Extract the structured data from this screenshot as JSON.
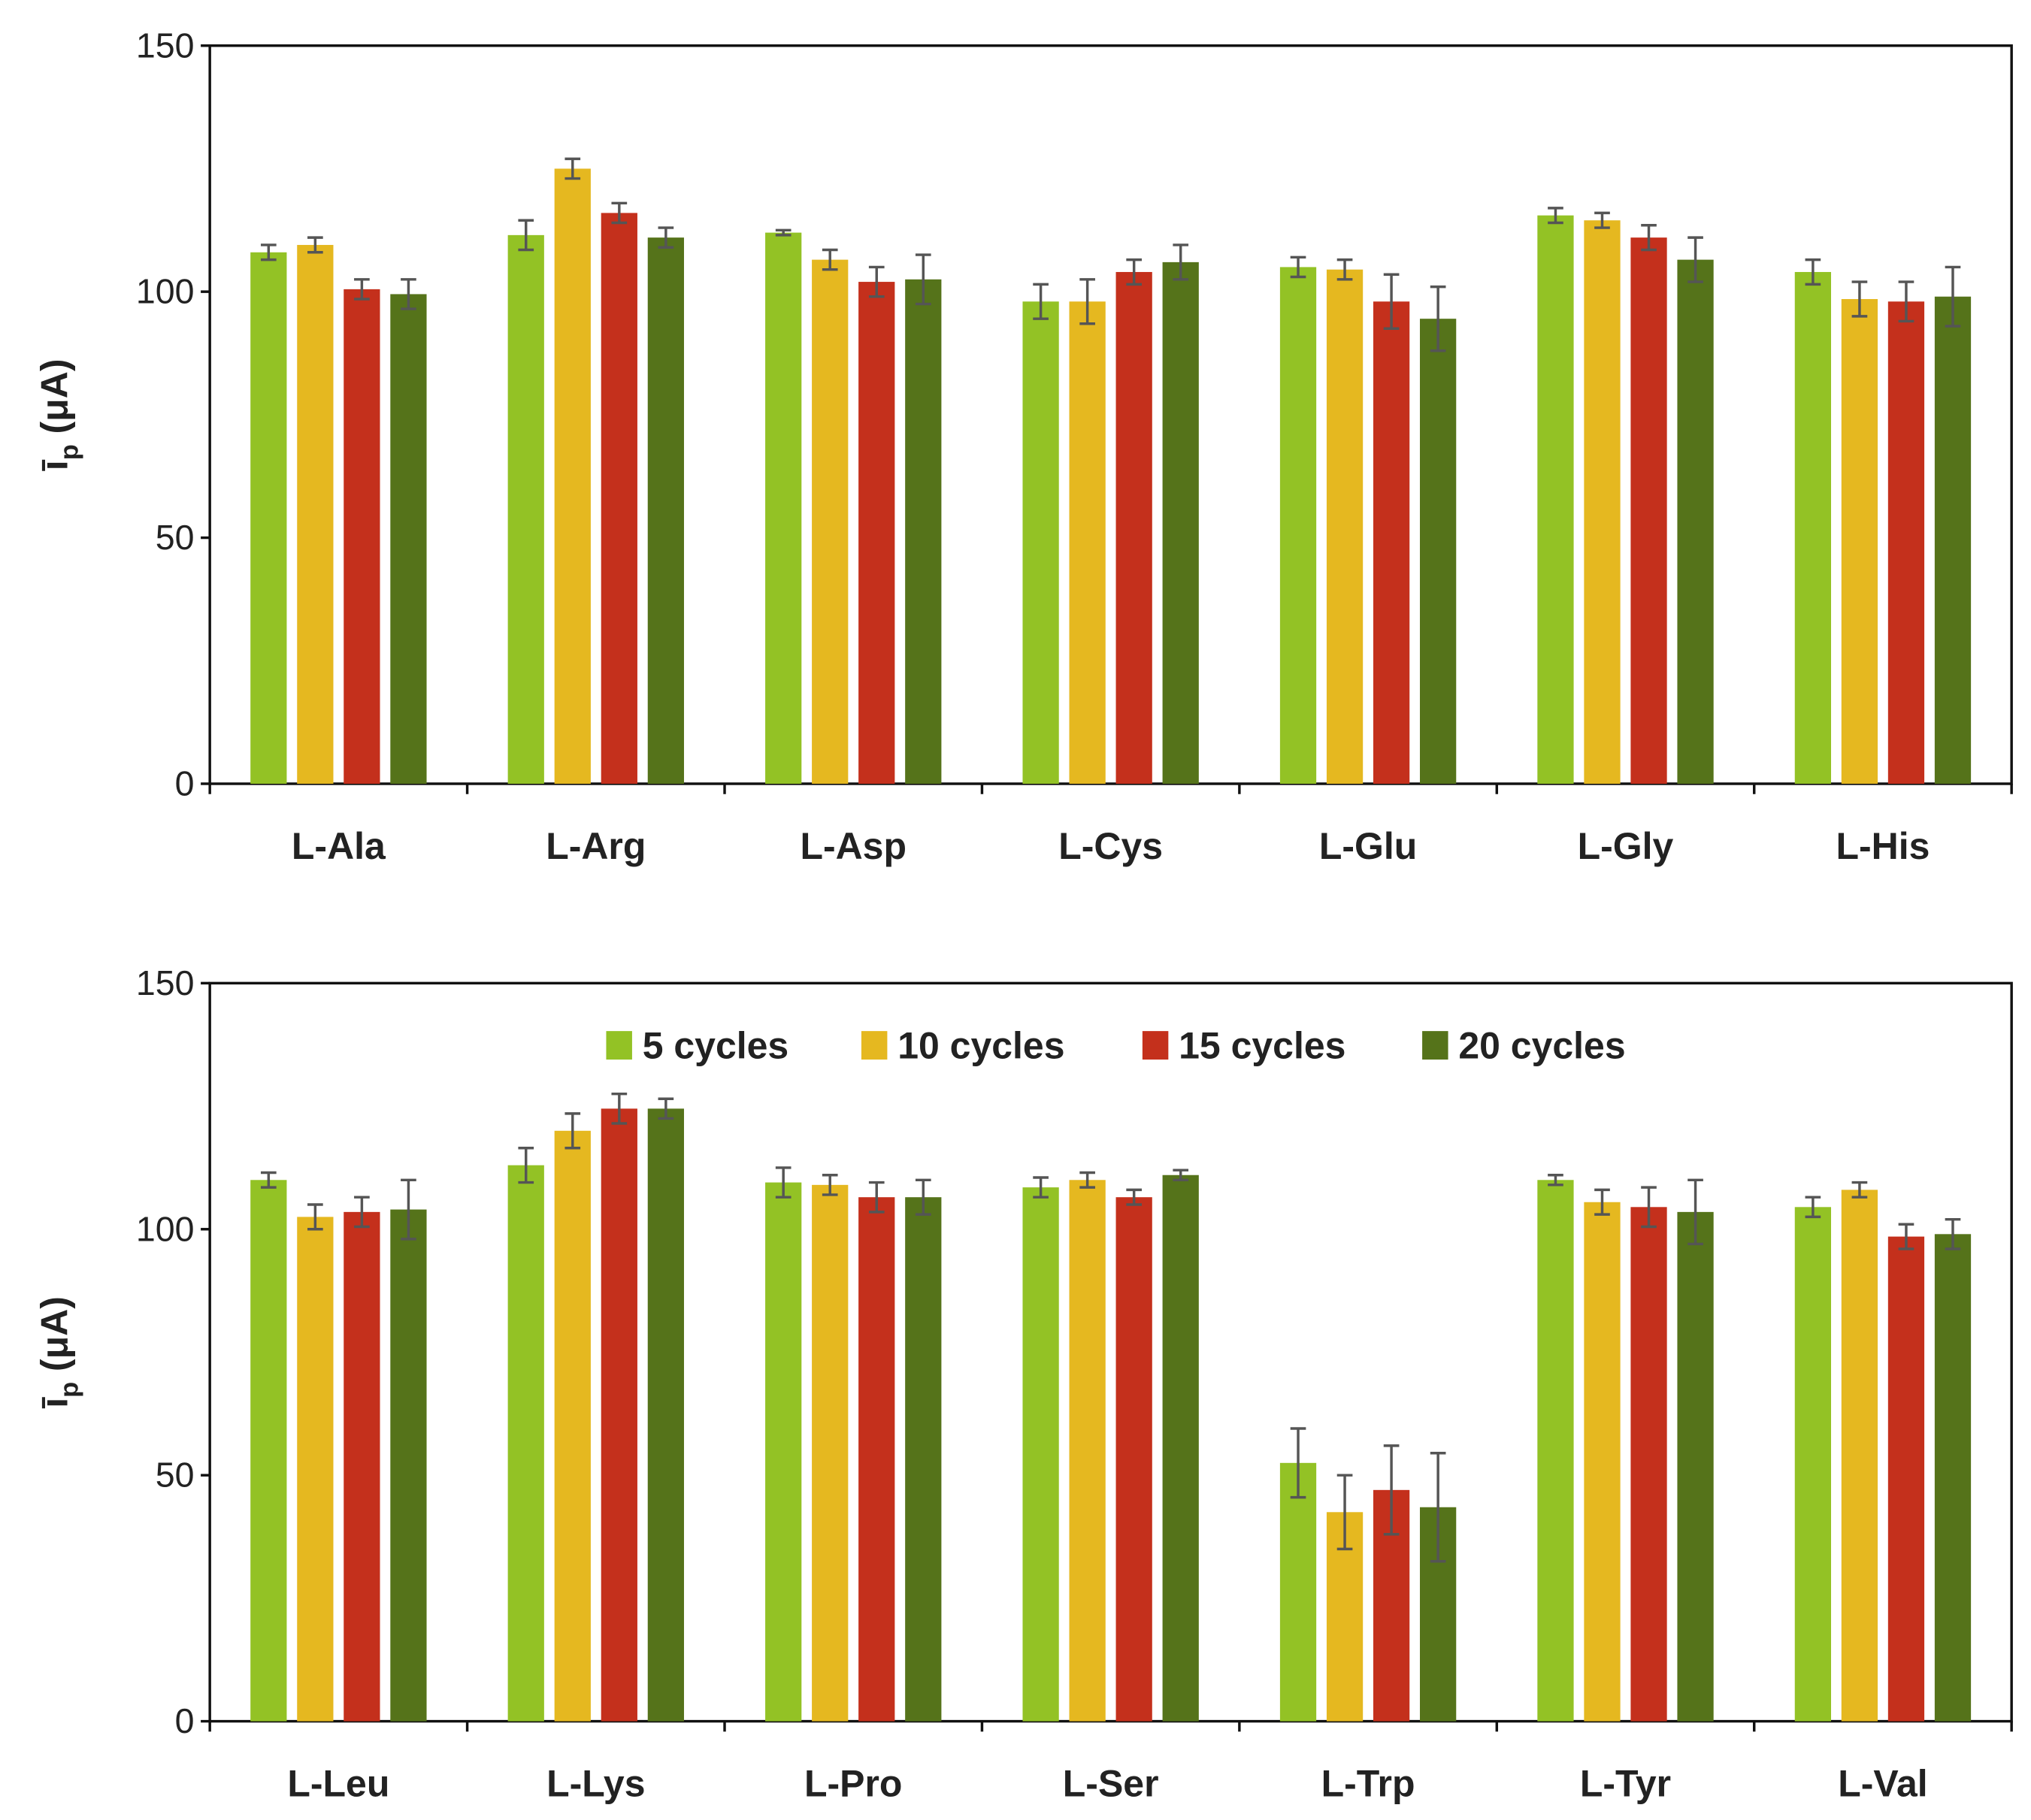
{
  "colors": {
    "5 cycles": "#93c225",
    "10 cycles": "#e5b820",
    "15 cycles": "#c4301c",
    "20 cycles": "#55731a",
    "error_bar": "#555555"
  },
  "chart_data": [
    {
      "type": "bar",
      "categories": [
        "L-Ala",
        "L-Arg",
        "L-Asp",
        "L-Cys",
        "L-Glu",
        "L-Gly",
        "L-His"
      ],
      "ylabel": {
        "symbol": "ī",
        "subscript": "p",
        "unit": "(μA)"
      },
      "ylim": [
        0,
        150
      ],
      "yticks": [
        0,
        50,
        100,
        150
      ],
      "grid": false,
      "legend": null,
      "series": [
        {
          "name": "5 cycles",
          "values": [
            108,
            111.5,
            112,
            98,
            105,
            115.5,
            104
          ],
          "errors": [
            1.5,
            3,
            0.5,
            3.5,
            2,
            1.5,
            2.5
          ]
        },
        {
          "name": "10 cycles",
          "values": [
            109.5,
            125,
            106.5,
            98,
            104.5,
            114.5,
            98.5
          ],
          "errors": [
            1.5,
            2,
            2,
            4.5,
            2,
            1.5,
            3.5
          ]
        },
        {
          "name": "15 cycles",
          "values": [
            100.5,
            116,
            102,
            104,
            98,
            111,
            98
          ],
          "errors": [
            2,
            2,
            3,
            2.5,
            5.5,
            2.5,
            4
          ]
        },
        {
          "name": "20 cycles",
          "values": [
            99.5,
            111,
            102.5,
            106,
            94.5,
            106.5,
            99
          ],
          "errors": [
            3,
            2,
            5,
            3.5,
            6.5,
            4.5,
            6
          ]
        }
      ]
    },
    {
      "type": "bar",
      "categories": [
        "L-Leu",
        "L-Lys",
        "L-Pro",
        "L-Ser",
        "L-Trp",
        "L-Tyr",
        "L-Val"
      ],
      "ylabel": {
        "symbol": "ī",
        "subscript": "p",
        "unit": "(μA)"
      },
      "ylim": [
        0,
        150
      ],
      "yticks": [
        0,
        50,
        100,
        150
      ],
      "grid": false,
      "legend": "top-center",
      "series": [
        {
          "name": "5 cycles",
          "values": [
            110,
            113,
            109.5,
            108.5,
            52.5,
            110,
            104.5
          ],
          "errors": [
            1.5,
            3.5,
            3,
            2,
            7,
            1,
            2
          ]
        },
        {
          "name": "10 cycles",
          "values": [
            102.5,
            120,
            109,
            110,
            42.5,
            105.5,
            108
          ],
          "errors": [
            2.5,
            3.5,
            2,
            1.5,
            7.5,
            2.5,
            1.5
          ]
        },
        {
          "name": "15 cycles",
          "values": [
            103.5,
            124.5,
            106.5,
            106.5,
            47,
            104.5,
            98.5
          ],
          "errors": [
            3,
            3,
            3,
            1.5,
            9,
            4,
            2.5
          ]
        },
        {
          "name": "20 cycles",
          "values": [
            104,
            124.5,
            106.5,
            111,
            43.5,
            103.5,
            99
          ],
          "errors": [
            6,
            2,
            3.5,
            1,
            11,
            6.5,
            3
          ]
        }
      ]
    }
  ]
}
